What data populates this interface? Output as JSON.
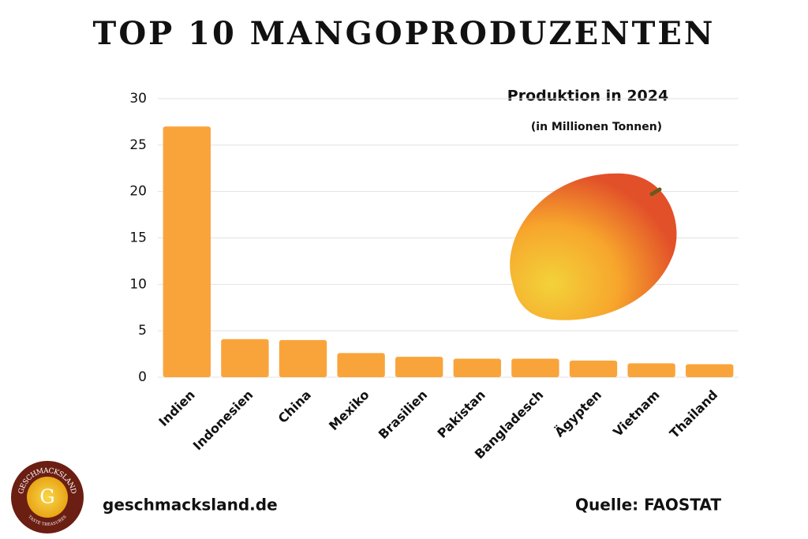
{
  "chart_data": {
    "type": "bar",
    "title": "TOP 10 MANGOPRODUZENTEN",
    "subtitle": "Produktion in 2024",
    "unit_note": "(in Millionen Tonnen)",
    "categories": [
      "Indien",
      "Indonesien",
      "China",
      "Mexiko",
      "Brasilien",
      "Pakistan",
      "Bangladesch",
      "Ägypten",
      "Vietnam",
      "Thailand"
    ],
    "values": [
      27,
      4.1,
      4.0,
      2.6,
      2.2,
      2.0,
      2.0,
      1.8,
      1.5,
      1.4
    ],
    "color": "#f9a43b",
    "ylim": [
      0,
      30
    ],
    "yticks": [
      0,
      5,
      10,
      15,
      20,
      25,
      30
    ],
    "grid": true
  },
  "footer": {
    "website": "geschmacksland.de",
    "source": "Quelle: FAOSTAT"
  },
  "logo": {
    "name": "GESCHMACKSLAND",
    "letter": "G",
    "tagline": "TASTE TREASURES"
  }
}
